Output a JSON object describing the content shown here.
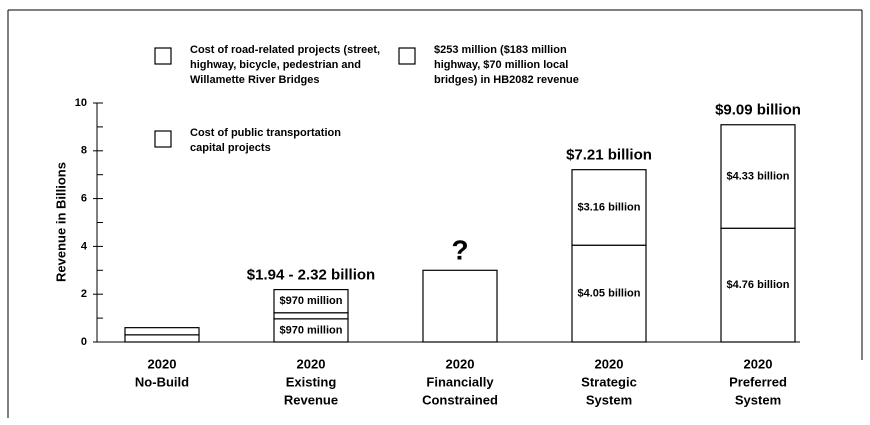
{
  "chart_data": {
    "type": "stacked_bar",
    "y_label": "Revenue in Billions",
    "categories": [
      [
        "2020",
        "No-Build"
      ],
      [
        "2020",
        "Existing",
        "Revenue"
      ],
      [
        "2020",
        "Financially",
        "Constrained"
      ],
      [
        "2020",
        "Strategic",
        "System"
      ],
      [
        "2020",
        "Preferred",
        "System"
      ]
    ],
    "series": [
      {
        "name": "Cost of road-related projects (street, highway, bicycle, pedestrian and Willamette River Bridges",
        "color": "#ffffff",
        "values": [
          0.3,
          0.97,
          3.0,
          4.05,
          4.76
        ],
        "value_labels": [
          null,
          "$970 million",
          null,
          "$4.05 billion",
          "$4.76 billion"
        ]
      },
      {
        "name": "$253 million ($183 million highway, $70 million local bridges) in HB2082 revenue",
        "color": "#ffffff",
        "values": [
          null,
          0.253,
          null,
          null,
          null
        ],
        "value_labels": [
          null,
          null,
          null,
          null,
          null
        ]
      },
      {
        "name": "Cost of public transportation capital projects",
        "color": "#ffffff",
        "values": [
          0.3,
          0.97,
          null,
          3.16,
          4.33
        ],
        "value_labels": [
          null,
          "$970 million",
          null,
          "$3.16 billion",
          "$4.33 billion"
        ]
      }
    ],
    "bar_annotations": [
      null,
      "$1.94 - 2.32 billion",
      "?",
      "$7.21 billion",
      "$9.09 billion"
    ],
    "ylim": [
      0,
      10
    ],
    "yticks": [
      0,
      2,
      4,
      6,
      8,
      10
    ],
    "minor_yticks": [
      1,
      3,
      5,
      7,
      9
    ]
  }
}
